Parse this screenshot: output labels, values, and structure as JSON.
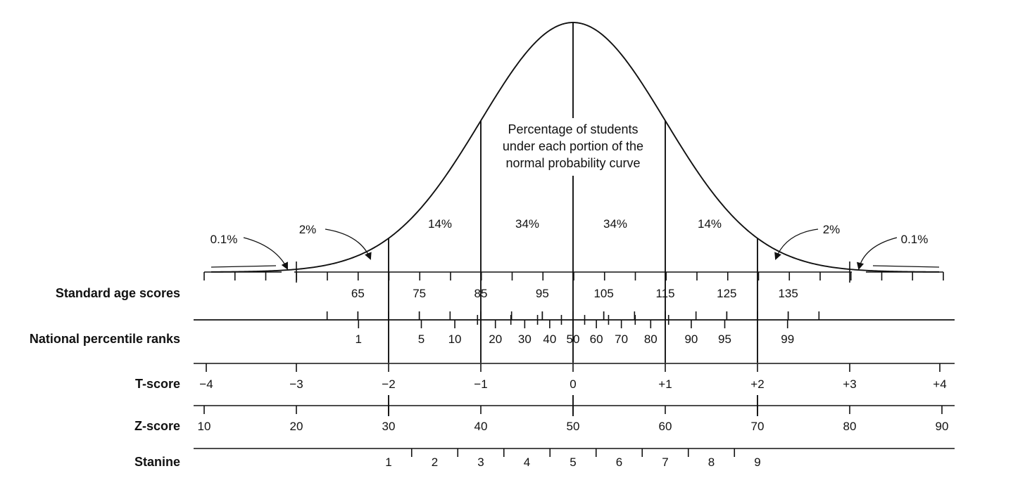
{
  "center_label": [
    "Percentage of students",
    "under each portion of the",
    "normal probability curve"
  ],
  "percent_labels": [
    "0.1%",
    "2%",
    "14%",
    "34%",
    "34%",
    "14%",
    "2%",
    "0.1%"
  ],
  "rows": {
    "standard_age_scores": {
      "label": "Standard age scores",
      "ticks": [
        "65",
        "75",
        "85",
        "95",
        "105",
        "115",
        "125",
        "135"
      ]
    },
    "national_percentile_ranks": {
      "label": "National percentile ranks",
      "ticks": [
        "1",
        "5",
        "10",
        "20",
        "30",
        "40",
        "50",
        "60",
        "70",
        "80",
        "90",
        "95",
        "99"
      ]
    },
    "t_score": {
      "label": "T-score",
      "ticks": [
        "−4",
        "−3",
        "−2",
        "−1",
        "0",
        "+1",
        "+2",
        "+3",
        "+4"
      ]
    },
    "z_score": {
      "label": "Z-score",
      "ticks": [
        "10",
        "20",
        "30",
        "40",
        "50",
        "60",
        "70",
        "80",
        "90"
      ]
    },
    "stanine": {
      "label": "Stanine",
      "ticks": [
        "1",
        "2",
        "3",
        "4",
        "5",
        "6",
        "7",
        "8",
        "9"
      ]
    }
  }
}
